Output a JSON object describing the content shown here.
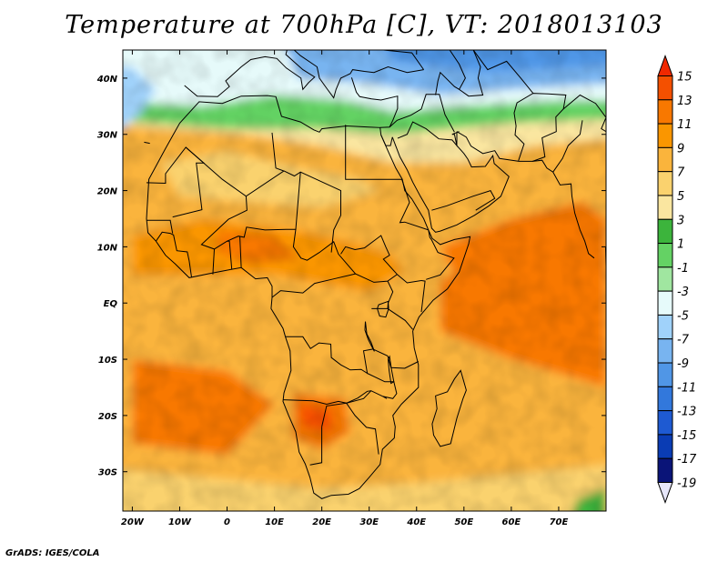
{
  "title": "Temperature at 700hPa [C], VT: 2018013103",
  "credit": "GrADS: IGES/COLA",
  "colors": {
    "frame": "#000000",
    "coast": "#000000"
  },
  "chart_data": {
    "type": "heatmap",
    "title": "Temperature at 700hPa [C], VT: 2018013103",
    "variable": "Temperature",
    "level": "700hPa",
    "units": "C",
    "valid_time": "2018013103",
    "xlim": [
      -22,
      80
    ],
    "ylim": [
      -37,
      45
    ],
    "x_tick_labels": [
      "20W",
      "10W",
      "0",
      "10E",
      "20E",
      "30E",
      "40E",
      "50E",
      "60E",
      "70E"
    ],
    "x_tick_values": [
      -20,
      -10,
      0,
      10,
      20,
      30,
      40,
      50,
      60,
      70
    ],
    "y_tick_labels": [
      "40N",
      "30N",
      "20N",
      "10N",
      "EQ",
      "10S",
      "20S",
      "30S"
    ],
    "y_tick_values": [
      40,
      30,
      20,
      10,
      0,
      -10,
      -20,
      -30
    ],
    "colorbar": {
      "labels": [
        "15",
        "13",
        "11",
        "9",
        "7",
        "5",
        "3",
        "1",
        "-1",
        "-3",
        "-5",
        "-7",
        "-9",
        "-11",
        "-13",
        "-15",
        "-17",
        "-19"
      ],
      "levels": [
        15,
        13,
        11,
        9,
        7,
        5,
        3,
        1,
        -1,
        -3,
        -5,
        -7,
        -9,
        -11,
        -13,
        -15,
        -17,
        -19
      ],
      "colors": [
        "#f02800",
        "#f45000",
        "#f87800",
        "#fa9600",
        "#fab43c",
        "#fad26e",
        "#fae6a0",
        "#3cb43c",
        "#64d264",
        "#a0e6a0",
        "#e6fafa",
        "#a0d2fa",
        "#78b4f0",
        "#5096e6",
        "#3278dc",
        "#1e5ad2",
        "#0a3cb4",
        "#0a1478",
        "#e6e6fa"
      ]
    }
  }
}
